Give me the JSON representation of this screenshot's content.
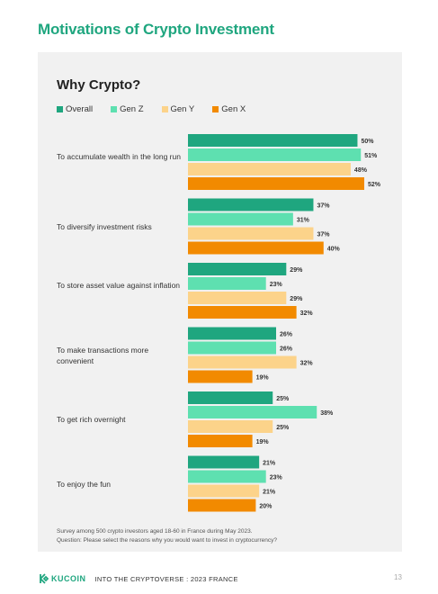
{
  "page": {
    "title": "Motivations of Crypto Investment",
    "note_line1": "Survey among 500 crypto investors aged 18-60 in France during May 2023.",
    "note_line2": "Question: Please select the reasons why you would want to invest in cryptocurrency?",
    "brand": "KUCOIN",
    "footer_text": "INTO THE CRYPTOVERSE : 2023 FRANCE",
    "page_number": "13",
    "logo_icon": "kucoin-logo-icon"
  },
  "chart_data": {
    "type": "bar",
    "orientation": "horizontal",
    "title": "Why Crypto?",
    "categories": [
      "To accumulate wealth in the long run",
      "To diversify investment risks",
      "To store asset value against inflation",
      "To make transactions more convenient",
      "To get rich overnight",
      "To enjoy the fun"
    ],
    "series": [
      {
        "name": "Overall",
        "color": "#1fa67f",
        "values": [
          50,
          37,
          29,
          26,
          25,
          21
        ]
      },
      {
        "name": "Gen Z",
        "color": "#5ee0b0",
        "values": [
          51,
          31,
          23,
          26,
          38,
          23
        ]
      },
      {
        "name": "Gen Y",
        "color": "#fcd38a",
        "values": [
          48,
          37,
          29,
          32,
          25,
          21
        ]
      },
      {
        "name": "Gen X",
        "color": "#f28a00",
        "values": [
          52,
          40,
          32,
          19,
          19,
          20
        ]
      }
    ],
    "value_suffix": "%",
    "xlim": [
      0,
      52
    ],
    "legend_position": "top-left",
    "grid": false
  }
}
